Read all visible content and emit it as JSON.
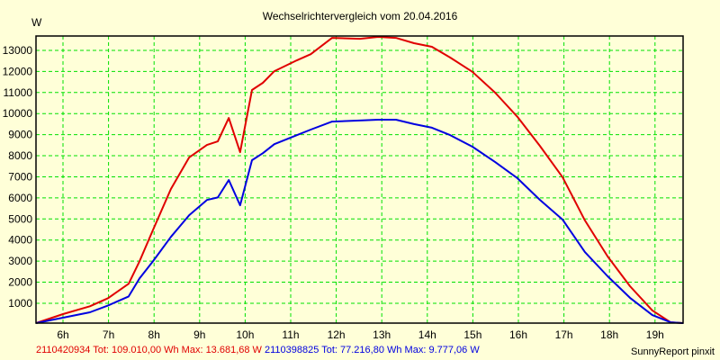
{
  "chart_data": {
    "type": "line",
    "title": "Wechselrichtervergleich vom 20.04.2016",
    "xlabel": "",
    "ylabel": "W",
    "xlim": [
      5.41,
      19.62
    ],
    "ylim": [
      0,
      13685
    ],
    "grid": true,
    "x_ticks": [
      6,
      7,
      8,
      9,
      10,
      11,
      12,
      13,
      14,
      15,
      16,
      17,
      18,
      19
    ],
    "x_tick_labels": [
      "6h",
      "7h",
      "8h",
      "9h",
      "10h",
      "11h",
      "12h",
      "13h",
      "14h",
      "15h",
      "16h",
      "17h",
      "18h",
      "19h"
    ],
    "y_ticks": [
      1000,
      2000,
      3000,
      4000,
      5000,
      6000,
      7000,
      8000,
      9000,
      10000,
      11000,
      12000,
      13000
    ],
    "x": [
      5.41,
      6.0,
      6.59,
      6.99,
      7.44,
      7.68,
      7.98,
      8.37,
      8.77,
      9.16,
      9.4,
      9.64,
      9.89,
      10.15,
      10.39,
      10.64,
      11.14,
      11.44,
      11.91,
      12.52,
      12.92,
      13.31,
      13.71,
      14.1,
      14.5,
      14.99,
      15.49,
      15.98,
      16.47,
      16.97,
      17.46,
      17.96,
      18.45,
      18.94,
      19.34,
      19.62
    ],
    "series": [
      {
        "name": "2110420934",
        "color": "#e00000",
        "values": [
          0,
          487,
          858,
          1242,
          1925,
          2990,
          4500,
          6420,
          7920,
          8510,
          8680,
          9790,
          8170,
          11120,
          11460,
          12010,
          12530,
          12820,
          13590,
          13550,
          13640,
          13590,
          13340,
          13170,
          12660,
          11980,
          10990,
          9840,
          8470,
          6980,
          4930,
          3220,
          1810,
          660,
          100,
          0
        ]
      },
      {
        "name": "2110398825",
        "color": "#0000e0",
        "values": [
          0,
          316,
          572,
          897,
          1324,
          2177,
          3006,
          4150,
          5180,
          5900,
          6020,
          6850,
          5650,
          7790,
          8120,
          8550,
          8980,
          9240,
          9620,
          9670,
          9710,
          9710,
          9500,
          9330,
          8980,
          8430,
          7700,
          6930,
          5910,
          4970,
          3430,
          2280,
          1260,
          440,
          100,
          0
        ]
      }
    ],
    "legend": [
      {
        "id": "2110420934",
        "text": "2110420934 Tot: 109.010,00 Wh Max: 13.681,68 W",
        "total": "109.010,00 Wh",
        "max": "13.681,68 W"
      },
      {
        "id": "2110398825",
        "text": "2110398825 Tot: 77.216,80 Wh Max: 9.777,06 W",
        "total": "77.216,80 Wh",
        "max": "9.777,06 W"
      }
    ],
    "legend_position": "bottom-left"
  },
  "title": "Wechselrichtervergleich vom 20.04.2016",
  "y_unit": "W",
  "legend": {
    "series1": "2110420934 Tot: 109.010,00 Wh Max: 13.681,68 W",
    "series2": "2110398825 Tot: 77.216,80 Wh Max: 9.777,06 W"
  },
  "credit": "SunnyReport pinxit",
  "colors": {
    "background": "#ffffd8",
    "grid": "#00e000",
    "series1": "#e00000",
    "series2": "#0000e0",
    "axis": "#000000"
  }
}
